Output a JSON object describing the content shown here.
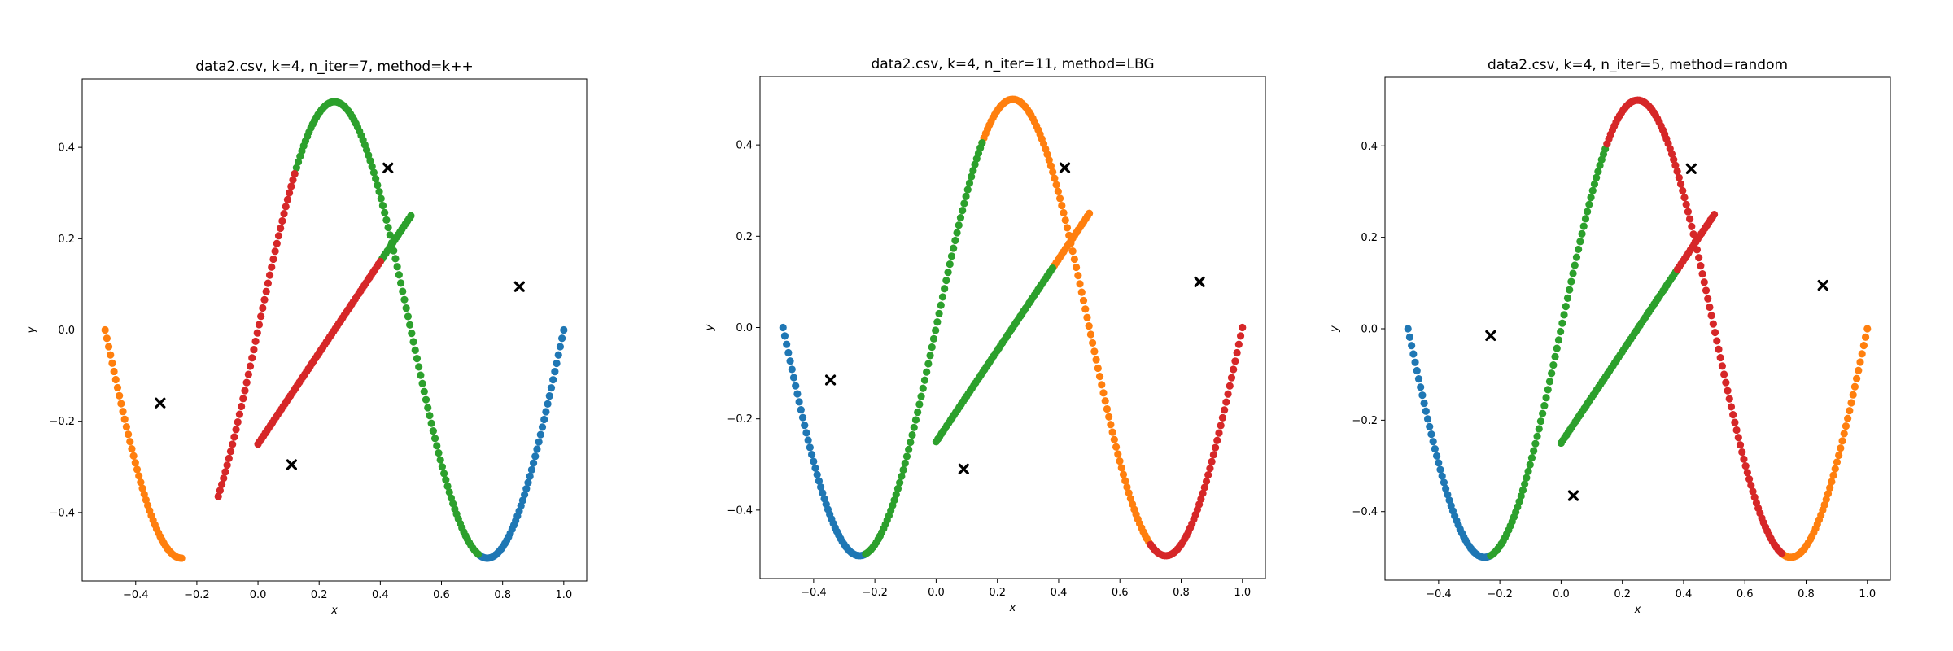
{
  "colors": {
    "cluster": [
      "#1f77b4",
      "#ff7f0e",
      "#2ca02c",
      "#d62728"
    ],
    "centroid": "#000000"
  },
  "chart_data": [
    {
      "type": "scatter",
      "title": "data2.csv, k=4, n_iter=7, method=k++",
      "xlabel": "x",
      "ylabel": "y",
      "xlim": [
        -0.575,
        1.075
      ],
      "ylim": [
        -0.55,
        0.55
      ],
      "xticks": [
        -0.4,
        -0.2,
        0.0,
        0.2,
        0.4,
        0.6,
        0.8,
        1.0
      ],
      "yticks": [
        -0.4,
        -0.2,
        0.0,
        0.2,
        0.4
      ],
      "xtick_labels": [
        "−0.4",
        "−0.2",
        "0.0",
        "0.2",
        "0.4",
        "0.6",
        "0.8",
        "1.0"
      ],
      "ytick_labels": [
        "−0.4",
        "−0.2",
        "0.0",
        "0.2",
        "0.4"
      ],
      "clusters": [
        {
          "x_range": [
            0.72,
            1.0
          ],
          "x_ranges_inner": []
        },
        {
          "x_range": [
            -0.5,
            -0.25
          ],
          "x_ranges_inner": []
        },
        {
          "x_range": [
            0.12,
            0.72
          ],
          "x_ranges_inner": [
            [
              0.4,
              0.5
            ]
          ]
        },
        {
          "x_range": [
            -0.13,
            0.12
          ],
          "x_ranges_inner": [
            [
              0.0,
              0.4
            ]
          ]
        }
      ],
      "centroids": [
        {
          "x": 0.855,
          "y": 0.095
        },
        {
          "x": -0.32,
          "y": -0.16
        },
        {
          "x": 0.425,
          "y": 0.355
        },
        {
          "x": 0.11,
          "y": -0.295
        }
      ]
    },
    {
      "type": "scatter",
      "title": "data2.csv, k=4, n_iter=11, method=LBG",
      "xlabel": "x",
      "ylabel": "y",
      "xlim": [
        -0.575,
        1.075
      ],
      "ylim": [
        -0.55,
        0.55
      ],
      "xticks": [
        -0.4,
        -0.2,
        0.0,
        0.2,
        0.4,
        0.6,
        0.8,
        1.0
      ],
      "yticks": [
        -0.4,
        -0.2,
        0.0,
        0.2,
        0.4
      ],
      "xtick_labels": [
        "−0.4",
        "−0.2",
        "0.0",
        "0.2",
        "0.4",
        "0.6",
        "0.8",
        "1.0"
      ],
      "ytick_labels": [
        "−0.4",
        "−0.2",
        "0.0",
        "0.2",
        "0.4"
      ],
      "clusters": [
        {
          "x_range": [
            -0.5,
            -0.23
          ],
          "x_ranges_inner": []
        },
        {
          "x_range": [
            0.15,
            0.7
          ],
          "x_ranges_inner": [
            [
              0.38,
              0.5
            ]
          ]
        },
        {
          "x_range": [
            -0.23,
            0.15
          ],
          "x_ranges_inner": [
            [
              0.0,
              0.38
            ]
          ]
        },
        {
          "x_range": [
            0.7,
            1.0
          ],
          "x_ranges_inner": []
        }
      ],
      "centroids": [
        {
          "x": -0.345,
          "y": -0.115
        },
        {
          "x": 0.42,
          "y": 0.35
        },
        {
          "x": 0.09,
          "y": -0.31
        },
        {
          "x": 0.86,
          "y": 0.1
        }
      ]
    },
    {
      "type": "scatter",
      "title": "data2.csv, k=4, n_iter=5, method=random",
      "xlabel": "x",
      "ylabel": "y",
      "xlim": [
        -0.575,
        1.075
      ],
      "ylim": [
        -0.55,
        0.55
      ],
      "xticks": [
        -0.4,
        -0.2,
        0.0,
        0.2,
        0.4,
        0.6,
        0.8,
        1.0
      ],
      "yticks": [
        -0.4,
        -0.2,
        0.0,
        0.2,
        0.4
      ],
      "xtick_labels": [
        "−0.4",
        "−0.2",
        "0.0",
        "0.2",
        "0.4",
        "0.6",
        "0.8",
        "1.0"
      ],
      "ytick_labels": [
        "−0.4",
        "−0.2",
        "0.0",
        "0.2",
        "0.4"
      ],
      "clusters": [
        {
          "x_range": [
            -0.5,
            -0.23
          ],
          "x_ranges_inner": []
        },
        {
          "x_range": [
            0.72,
            1.0
          ],
          "x_ranges_inner": []
        },
        {
          "x_range": [
            -0.23,
            0.15
          ],
          "x_ranges_inner": [
            [
              0.0,
              0.38
            ]
          ]
        },
        {
          "x_range": [
            0.15,
            0.72
          ],
          "x_ranges_inner": [
            [
              0.38,
              0.5
            ]
          ]
        }
      ],
      "centroids": [
        {
          "x": -0.23,
          "y": -0.015
        },
        {
          "x": 0.855,
          "y": 0.095
        },
        {
          "x": 0.04,
          "y": -0.365
        },
        {
          "x": 0.425,
          "y": 0.35
        }
      ]
    }
  ]
}
